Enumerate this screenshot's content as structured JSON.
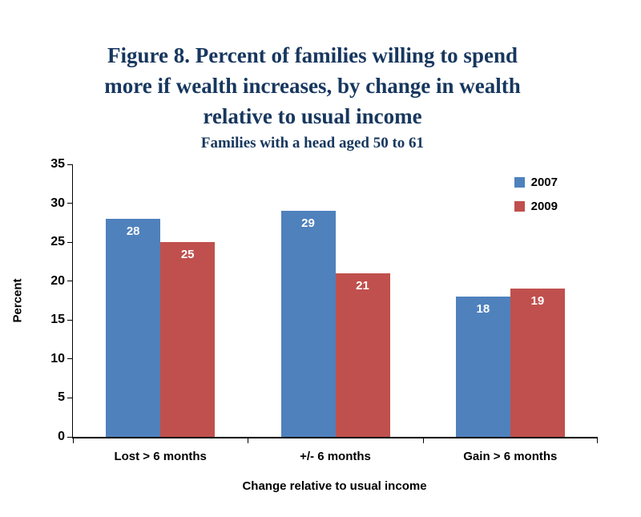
{
  "title_lines": [
    "Figure 8.  Percent of families willing to spend",
    "more if wealth increases, by change in wealth",
    "relative to usual income"
  ],
  "chart_data": {
    "type": "bar",
    "title": "Figure 8. Percent of families willing to spend more if wealth increases, by change in wealth relative to usual income",
    "subtitle": "Families with a head aged 50 to 61",
    "categories": [
      "Lost > 6 months",
      "+/- 6 months",
      "Gain > 6 months"
    ],
    "series": [
      {
        "name": "2007",
        "color": "#4F81BD",
        "values": [
          28,
          29,
          18
        ]
      },
      {
        "name": "2009",
        "color": "#C0504D",
        "values": [
          25,
          21,
          19
        ]
      }
    ],
    "data_labels": true,
    "xlabel": "Change relative to usual income",
    "ylabel": "Percent",
    "ylim": [
      0,
      35
    ],
    "ytick_step": 5,
    "grid": false,
    "legend_position": "top-right",
    "colors": {
      "title_text": "#17375E",
      "axis": "#000000",
      "data_label_text": "#ffffff"
    }
  }
}
